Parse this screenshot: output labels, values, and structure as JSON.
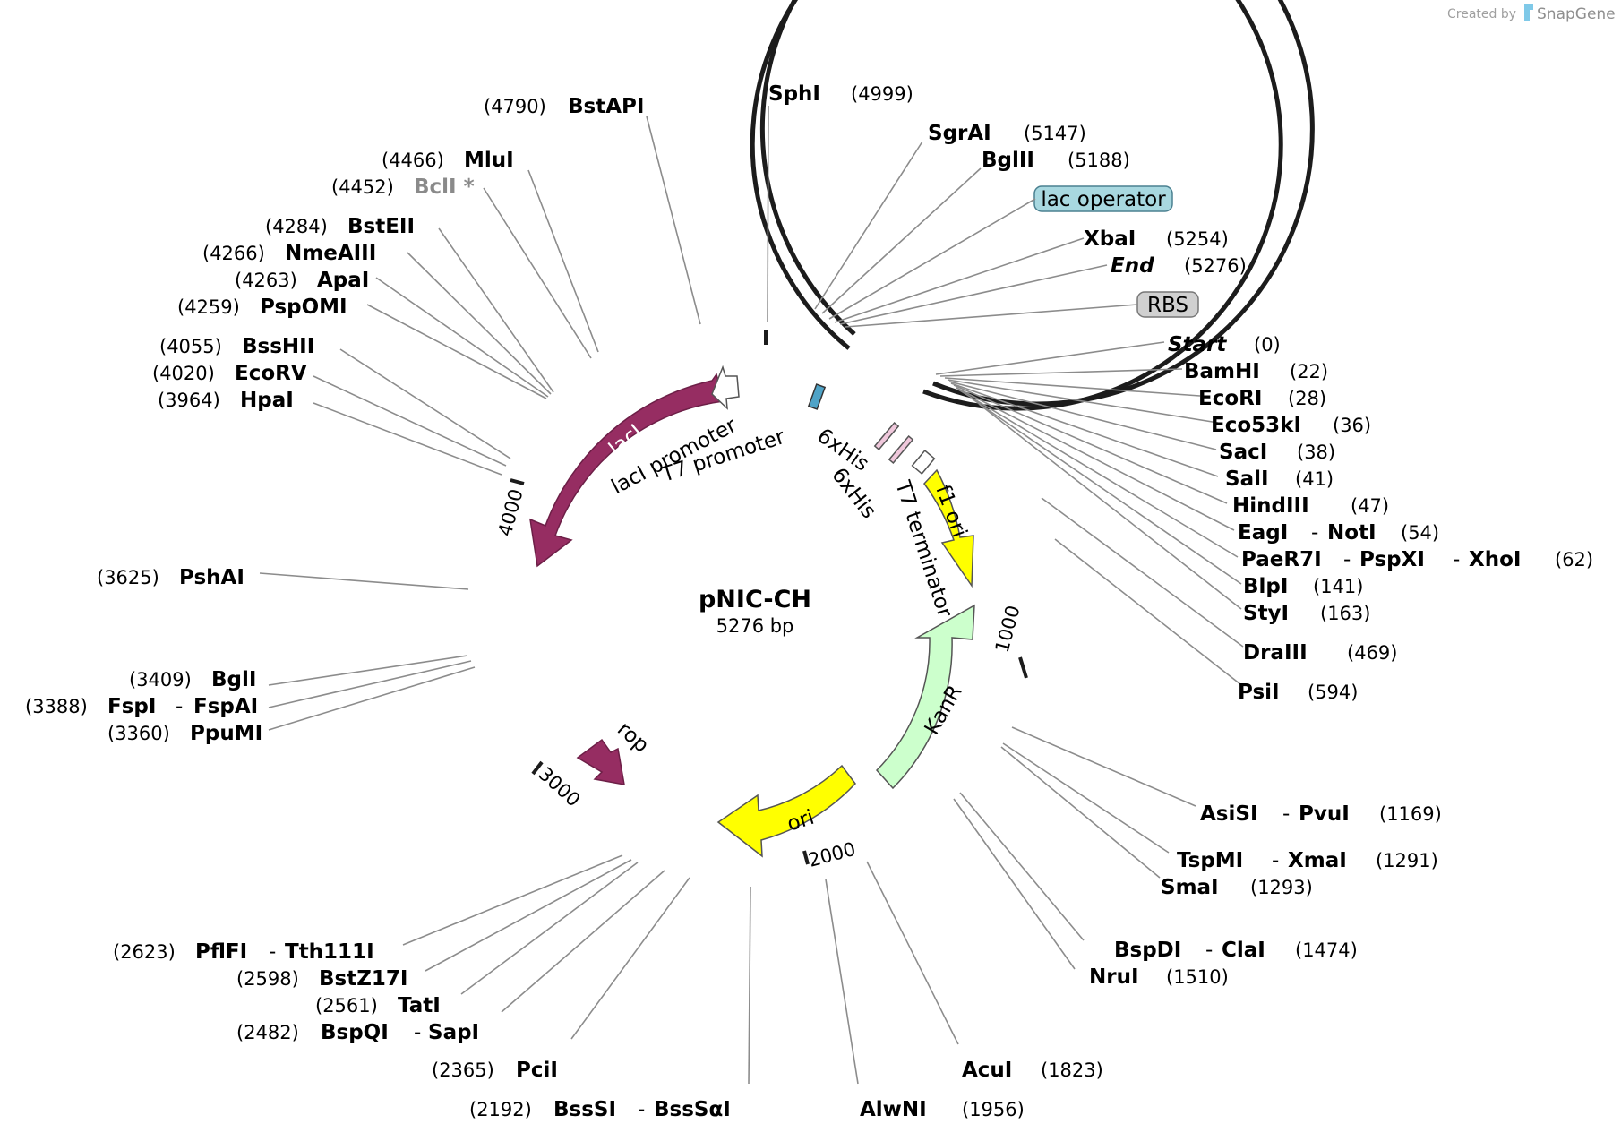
{
  "credit": {
    "created_by": "Created by",
    "brand": "SnapGene"
  },
  "plasmid": {
    "name": "pNIC-CH",
    "length": "5276 bp"
  },
  "colors": {
    "backbone": "#1c1c1c",
    "lacI": "#962d62",
    "rop": "#962d62",
    "f1_ori": "#ffff00",
    "ori": "#ffff00",
    "KanR": "#ccffcc",
    "lac_operator": "#a8d8e0",
    "RBS": "#d0d0d0",
    "sixHis": "#f0c8dc"
  },
  "ticks": [
    "1000",
    "2000",
    "3000",
    "4000"
  ],
  "features": {
    "lacI": "lacI",
    "lacI_promoter": "lacI promoter",
    "T7_promoter": "T7 promoter",
    "sixHis_1": "6xHis",
    "sixHis_2": "6xHis",
    "T7_terminator": "T7 terminator",
    "f1_ori": "f1 ori",
    "KanR": "KanR",
    "ori": "ori",
    "rop": "rop",
    "lac_operator": "lac operator",
    "RBS": "RBS"
  },
  "sites": {
    "SphI": "SphI",
    "SphI_pos": "(4999)",
    "SgrAI": "SgrAI",
    "SgrAI_pos": "(5147)",
    "BglII": "BglII",
    "BglII_pos": "(5188)",
    "XbaI": "XbaI",
    "XbaI_pos": "(5254)",
    "End": "End",
    "End_pos": "(5276)",
    "Start": "Start",
    "Start_pos": "(0)",
    "BamHI": "BamHI",
    "BamHI_pos": "(22)",
    "EcoRI": "EcoRI",
    "EcoRI_pos": "(28)",
    "Eco53kI": "Eco53kI",
    "Eco53kI_pos": "(36)",
    "SacI": "SacI",
    "SacI_pos": "(38)",
    "SalI": "SalI",
    "SalI_pos": "(41)",
    "HindIII": "HindIII",
    "HindIII_pos": "(47)",
    "EagI": "EagI",
    "NotI": "NotI",
    "EagI_pos": "(54)",
    "PaeR7I": "PaeR7I",
    "PspXI": "PspXI",
    "XhoI": "XhoI",
    "PaeR7I_pos": "(62)",
    "BlpI": "BlpI",
    "BlpI_pos": "(141)",
    "StyI": "StyI",
    "StyI_pos": "(163)",
    "DraIII": "DraIII",
    "DraIII_pos": "(469)",
    "PsiI": "PsiI",
    "PsiI_pos": "(594)",
    "AsiSI": "AsiSI",
    "PvuI": "PvuI",
    "AsiSI_pos": "(1169)",
    "TspMI": "TspMI",
    "XmaI": "XmaI",
    "TspMI_pos": "(1291)",
    "SmaI": "SmaI",
    "SmaI_pos": "(1293)",
    "BspDI": "BspDI",
    "ClaI": "ClaI",
    "BspDI_pos": "(1474)",
    "NruI": "NruI",
    "NruI_pos": "(1510)",
    "AcuI": "AcuI",
    "AcuI_pos": "(1823)",
    "AlwNI": "AlwNI",
    "AlwNI_pos": "(1956)",
    "BssSI": "BssSI",
    "BssSaI": "BssSαI",
    "BssSI_pos": "(2192)",
    "PciI": "PciI",
    "PciI_pos": "(2365)",
    "BspQI": "BspQI",
    "SapI": "SapI",
    "BspQI_pos": "(2482)",
    "TatI": "TatI",
    "TatI_pos": "(2561)",
    "BstZ17I": "BstZ17I",
    "BstZ17I_pos": "(2598)",
    "PflFI": "PflFI",
    "Tth111I": "Tth111I",
    "PflFI_pos": "(2623)",
    "PpuMI": "PpuMI",
    "PpuMI_pos": "(3360)",
    "FspI": "FspI",
    "FspAI": "FspAI",
    "FspI_pos": "(3388)",
    "BglI": "BglI",
    "BglI_pos": "(3409)",
    "PshAI": "PshAI",
    "PshAI_pos": "(3625)",
    "HpaI": "HpaI",
    "HpaI_pos": "(3964)",
    "EcoRV": "EcoRV",
    "EcoRV_pos": "(4020)",
    "BssHII": "BssHII",
    "BssHII_pos": "(4055)",
    "PspOMI": "PspOMI",
    "PspOMI_pos": "(4259)",
    "ApaI": "ApaI",
    "ApaI_pos": "(4263)",
    "NmeAIII": "NmeAIII",
    "NmeAIII_pos": "(4266)",
    "BstEII": "BstEII",
    "BstEII_pos": "(4284)",
    "BclI": "BclI *",
    "BclI_pos": "(4452)",
    "MluI": "MluI",
    "MluI_pos": "(4466)",
    "BstAPI": "BstAPI",
    "BstAPI_pos": "(4790)"
  }
}
